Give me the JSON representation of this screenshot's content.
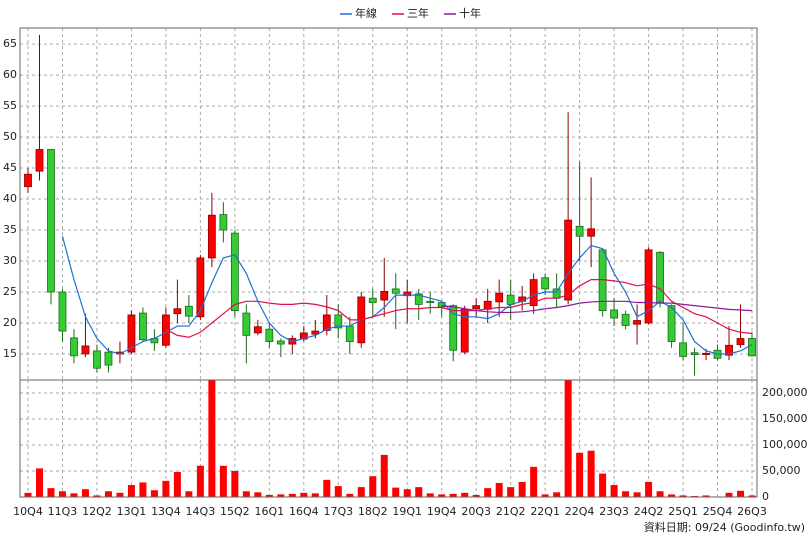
{
  "chart_data": [
    {
      "type": "candlestick",
      "up_color": "#ff0000",
      "down_color": "#33cc33",
      "ylim": [
        10.8,
        67.6
      ],
      "yticks": [
        15,
        20,
        25,
        30,
        35,
        40,
        45,
        50,
        55,
        60,
        65
      ],
      "grid": true,
      "open": [
        42,
        44.5,
        48,
        25,
        17.6,
        15,
        15.5,
        15.3,
        15,
        15.3,
        21.6,
        17.5,
        16.4,
        21.5,
        22.7,
        21,
        30.5,
        37.5,
        34.5,
        21.6,
        18.4,
        19,
        17.1,
        16.6,
        17.4,
        18.2,
        18.8,
        21.3,
        19.5,
        16.8,
        24,
        23.7,
        25.5,
        24.4,
        24.7,
        23.5,
        23.3,
        22.8,
        15.3,
        22.3,
        22.2,
        23.4,
        24.5,
        23.5,
        22.8,
        27.3,
        25.5,
        23.7,
        35.6,
        34,
        31.8,
        22.1,
        21.4,
        19.8,
        20,
        31.4,
        22.8,
        16.8,
        15.2,
        14.9,
        15.6,
        14.8,
        16.5,
        17.5
      ],
      "high": [
        45,
        66.5,
        48,
        25.5,
        19,
        21.5,
        16.5,
        16,
        17,
        22,
        22.5,
        19,
        22.5,
        27,
        24.5,
        31,
        41,
        39.5,
        35,
        23,
        20.5,
        20,
        17.5,
        18,
        19.5,
        20.5,
        24.5,
        23,
        21,
        25,
        25.5,
        30.5,
        28,
        27,
        25.5,
        25,
        23.5,
        23,
        22.8,
        24,
        25.5,
        27,
        27,
        26,
        28,
        28,
        28,
        54,
        46,
        43.5,
        32,
        24,
        22,
        23,
        32.2,
        31.6,
        23,
        20,
        16,
        15.8,
        16.5,
        19.5,
        23,
        18.5
      ],
      "low": [
        41,
        43,
        23,
        17,
        13.5,
        14.5,
        12,
        12,
        13.5,
        15,
        17,
        15.5,
        16,
        20,
        20,
        20.5,
        29,
        33,
        21,
        13.5,
        18,
        16,
        14.5,
        15,
        17,
        17.5,
        18,
        17.5,
        15,
        16,
        21,
        21,
        19,
        20,
        20.5,
        21.5,
        21,
        13.8,
        15,
        21,
        20,
        21,
        20.5,
        22,
        21.5,
        24.5,
        22.5,
        23,
        30,
        29,
        21,
        19.5,
        19,
        16.5,
        19.8,
        22.5,
        16,
        14,
        11.5,
        14,
        14,
        14,
        16,
        14.6
      ],
      "close": [
        44,
        48,
        25,
        18.7,
        14.7,
        16.3,
        12.7,
        13.2,
        15.3,
        21.3,
        17.3,
        16.8,
        21.3,
        22.3,
        21.1,
        30.5,
        37.4,
        35,
        22,
        18,
        19.4,
        17,
        16.6,
        17.5,
        18.4,
        18.7,
        21.3,
        19.2,
        17,
        24.2,
        23.3,
        25.1,
        24.8,
        25,
        23,
        23.3,
        22.6,
        15.6,
        22.2,
        22.8,
        23.5,
        24.8,
        23,
        24.2,
        27,
        25.5,
        24,
        36.6,
        34,
        35.2,
        22,
        20.8,
        19.6,
        20.4,
        31.8,
        23.3,
        17,
        14.6,
        14.9,
        15.1,
        14.3,
        16.4,
        17.5,
        14.7
      ],
      "series": [
        {
          "name": "年線",
          "color": "#1f6fd6",
          "values": [
            null,
            null,
            null,
            34,
            27,
            21,
            17.5,
            15.5,
            15,
            16,
            17,
            17.5,
            18.5,
            19.5,
            19.5,
            22,
            26.5,
            30.5,
            31,
            28,
            23.5,
            20,
            18,
            17,
            17.5,
            18,
            19,
            19.5,
            19.5,
            20.5,
            21,
            22.5,
            24.5,
            24.5,
            24.5,
            24,
            23.5,
            21.5,
            21,
            21,
            20.7,
            21.5,
            23,
            23.5,
            24.5,
            25,
            25,
            28,
            30.5,
            32.5,
            32,
            28,
            25,
            21,
            22,
            23.5,
            22.5,
            20.5,
            17,
            15.5,
            15,
            15,
            15.5,
            16.5
          ]
        },
        {
          "name": "三年",
          "color": "#e0104a",
          "values": [
            null,
            null,
            null,
            null,
            null,
            null,
            null,
            null,
            null,
            null,
            null,
            null,
            19,
            18,
            17.7,
            18.5,
            20,
            21.5,
            23,
            23.5,
            23.5,
            23.2,
            23,
            23,
            23.2,
            23,
            22.6,
            22,
            20.5,
            20.5,
            21,
            21.5,
            22,
            22.3,
            22.3,
            22.5,
            22.5,
            22,
            22,
            22,
            22.3,
            22.5,
            22.5,
            23,
            23.3,
            24,
            24,
            24.5,
            26,
            27,
            27,
            26.8,
            26.5,
            26,
            26.3,
            25.5,
            23.5,
            22.5,
            21.5,
            21,
            20,
            19,
            18.5,
            18.3
          ]
        },
        {
          "name": "十年",
          "color": "#8a1a9a",
          "values": [
            null,
            null,
            null,
            null,
            null,
            null,
            null,
            null,
            null,
            null,
            null,
            null,
            null,
            null,
            null,
            null,
            null,
            null,
            null,
            null,
            null,
            null,
            null,
            null,
            null,
            null,
            null,
            null,
            null,
            null,
            null,
            null,
            null,
            null,
            null,
            null,
            22.8,
            22.6,
            22.3,
            22,
            21.8,
            21.7,
            21.7,
            21.8,
            22,
            22.3,
            22.5,
            22.8,
            23.2,
            23.4,
            23.5,
            23.5,
            23.5,
            23.3,
            23.3,
            23.2,
            23.2,
            23,
            22.8,
            22.6,
            22.4,
            22.2,
            22.1,
            22
          ]
        }
      ]
    },
    {
      "type": "bar",
      "color": "#ff0000",
      "categories": [
        "10Q4",
        null,
        null,
        "11Q3",
        null,
        null,
        "12Q2",
        null,
        null,
        "13Q1",
        null,
        null,
        "13Q4",
        null,
        null,
        "14Q3",
        null,
        null,
        "15Q2",
        null,
        null,
        "16Q1",
        null,
        null,
        "16Q4",
        null,
        null,
        "17Q3",
        null,
        null,
        "18Q2",
        null,
        null,
        "19Q1",
        null,
        null,
        "19Q4",
        null,
        null,
        "20Q3",
        null,
        null,
        "21Q2",
        null,
        null,
        "22Q1",
        null,
        null,
        "22Q4",
        null,
        null,
        "23Q3",
        null,
        null,
        "24Q2",
        null,
        null,
        "25Q1",
        null,
        null,
        "25Q4",
        null,
        null,
        "26Q3"
      ],
      "values": [
        8000,
        55000,
        17000,
        11000,
        7000,
        15000,
        3000,
        11000,
        8000,
        23000,
        28000,
        13000,
        31000,
        48000,
        11000,
        60000,
        225000,
        60000,
        50000,
        11000,
        9000,
        4000,
        5000,
        6000,
        8000,
        7000,
        33000,
        21000,
        6000,
        19000,
        40000,
        81000,
        18000,
        15000,
        19000,
        7000,
        5000,
        6000,
        8000,
        4000,
        17000,
        27000,
        19000,
        29000,
        58000,
        5000,
        9000,
        225000,
        85000,
        89000,
        45000,
        23000,
        11000,
        9000,
        29000,
        11000,
        5000,
        3000,
        2000,
        3000,
        1000,
        8000,
        12000,
        3000
      ],
      "ylim": [
        0,
        225000
      ],
      "yticks": [
        0,
        {
          "value": 50000,
          "label": "50,000"
        },
        {
          "value": 100000,
          "label": "100,000"
        },
        {
          "value": 150000,
          "label": "150,000"
        },
        {
          "value": 200000,
          "label": "200,000"
        }
      ],
      "grid": true,
      "source": "資料日期: 09/24 (Goodinfo.tw)"
    }
  ]
}
